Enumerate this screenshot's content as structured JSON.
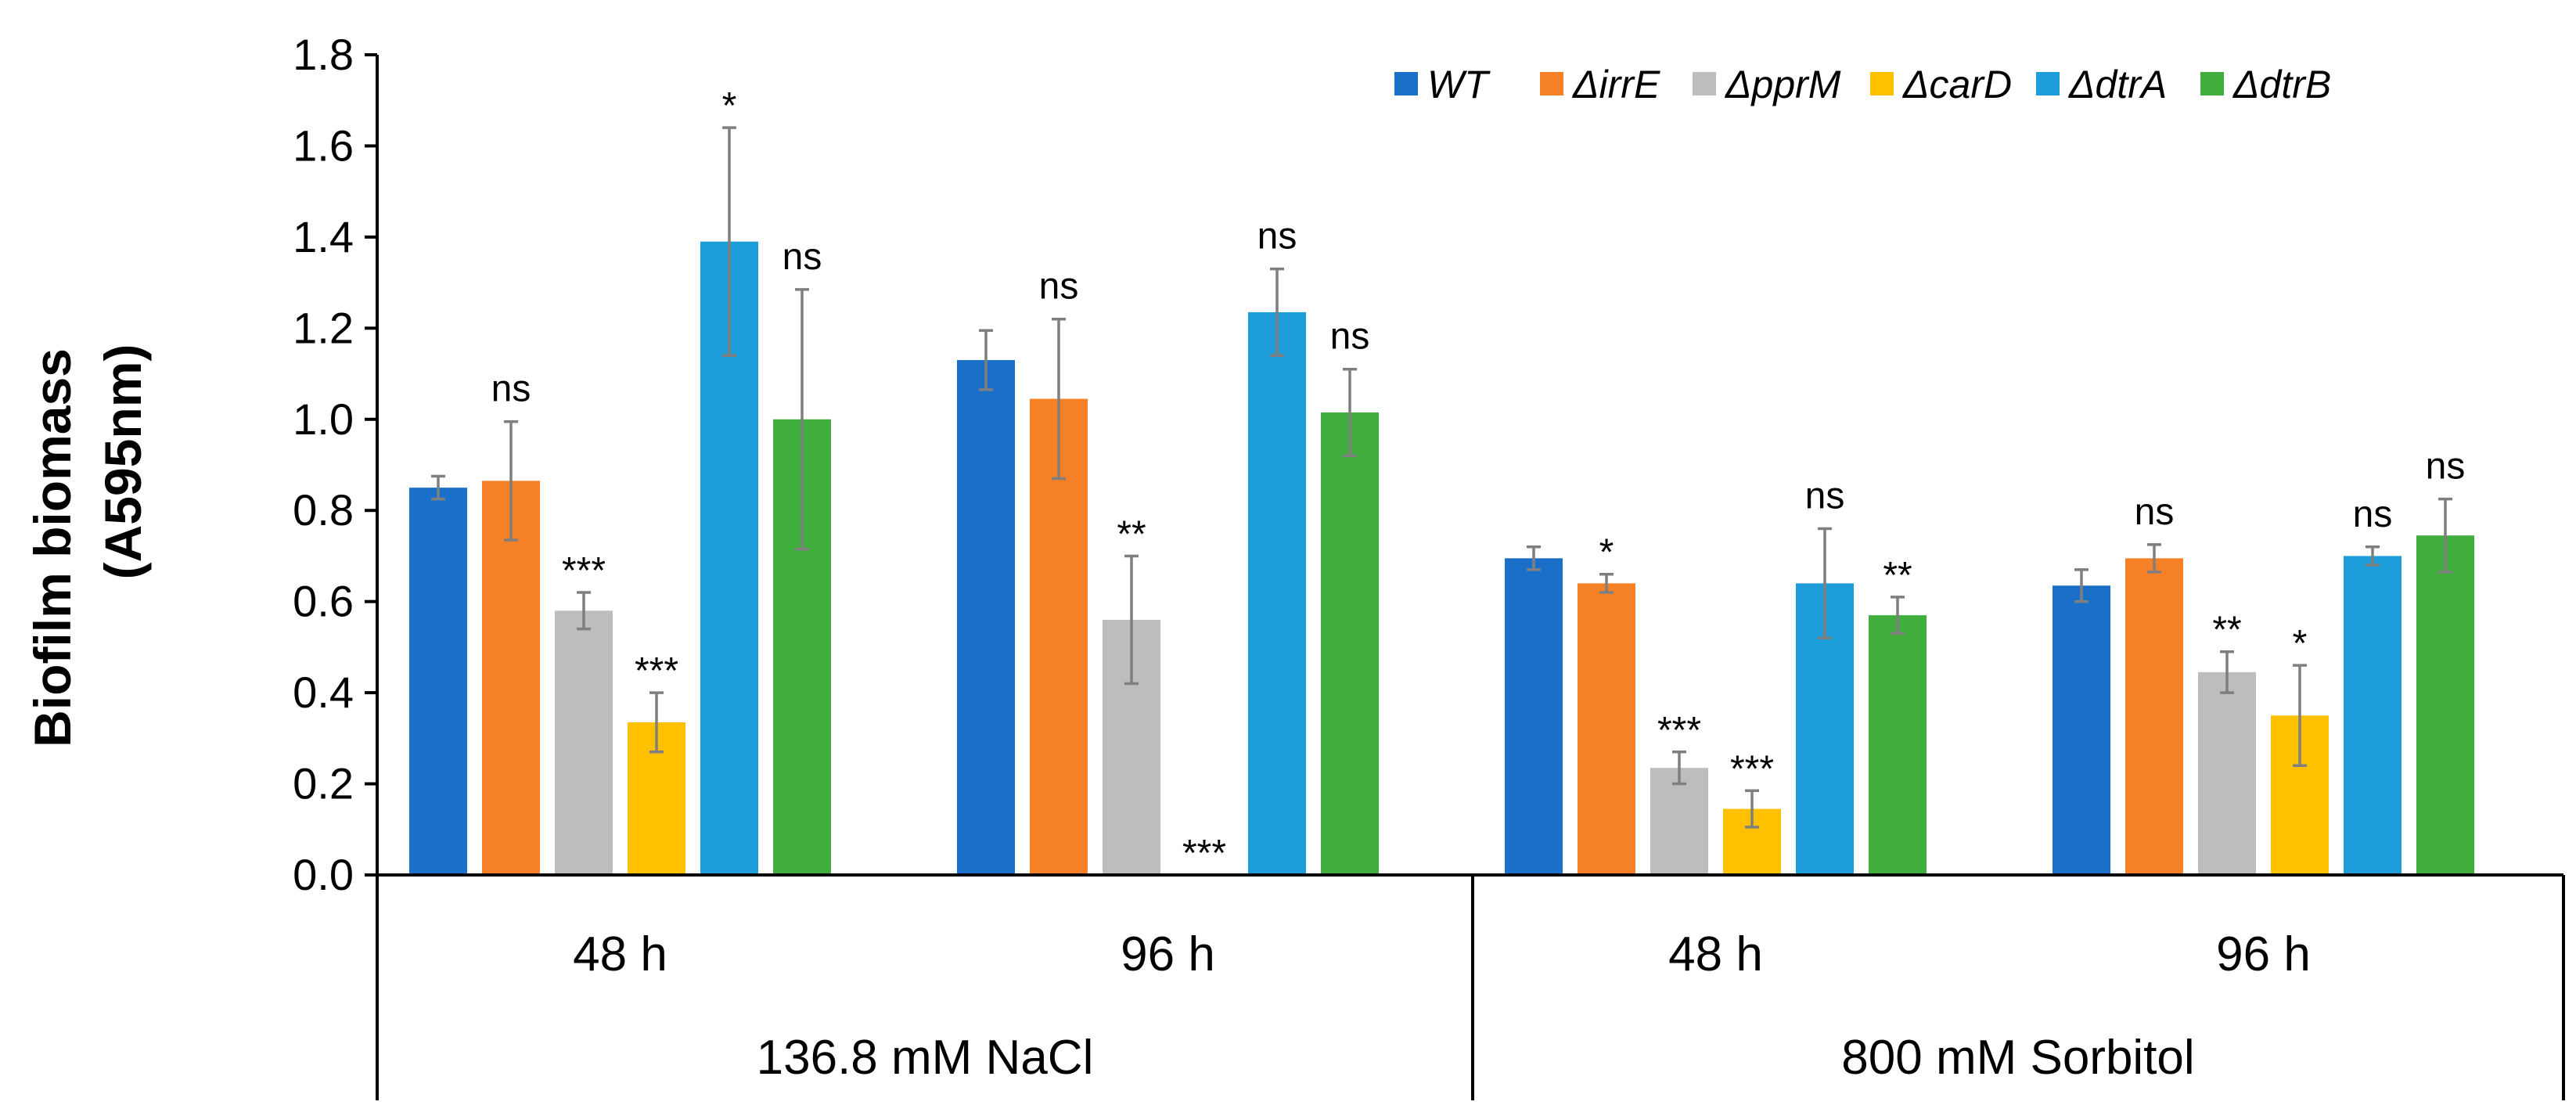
{
  "chart_data": {
    "type": "bar",
    "title": "",
    "ylabel_lines": [
      "Biofilm  biomass",
      "(A595nm)"
    ],
    "xlabel": "",
    "ylim": [
      0,
      1.8
    ],
    "yticks": [
      "0.0",
      "0.2",
      "0.4",
      "0.6",
      "0.8",
      "1.0",
      "1.2",
      "1.4",
      "1.6",
      "1.8"
    ],
    "legend_position": "top-right",
    "conditions": [
      "136.8 mM NaCl",
      "800 mM Sorbitol"
    ],
    "time_labels": [
      "48 h",
      "96 h",
      "48 h",
      "96 h"
    ],
    "categories": [
      "136.8 mM NaCl 48 h",
      "136.8 mM NaCl 96 h",
      "800 mM Sorbitol 48 h",
      "800 mM Sorbitol 96 h"
    ],
    "series": [
      {
        "name": "WT",
        "color": "#1A70C8",
        "values": [
          0.85,
          1.13,
          0.695,
          0.635
        ],
        "errors": [
          0.025,
          0.065,
          0.025,
          0.035
        ],
        "significance": [
          "",
          "",
          "",
          ""
        ]
      },
      {
        "name": "ΔirrE",
        "color": "#F58025",
        "values": [
          0.865,
          1.045,
          0.64,
          0.695
        ],
        "errors": [
          0.13,
          0.175,
          0.02,
          0.03
        ],
        "significance": [
          "ns",
          "ns",
          "*",
          "ns"
        ]
      },
      {
        "name": "ΔpprM",
        "color": "#BDBDBD",
        "values": [
          0.58,
          0.56,
          0.235,
          0.445
        ],
        "errors": [
          0.04,
          0.14,
          0.035,
          0.045
        ],
        "significance": [
          "***",
          "**",
          "***",
          "**"
        ]
      },
      {
        "name": "ΔcarD",
        "color": "#FFC000",
        "values": [
          0.335,
          0.0,
          0.145,
          0.35
        ],
        "errors": [
          0.065,
          0.0,
          0.04,
          0.11
        ],
        "significance": [
          "***",
          "***",
          "***",
          "*"
        ]
      },
      {
        "name": "ΔdtrA",
        "color": "#1E9DDB",
        "values": [
          1.39,
          1.235,
          0.64,
          0.7
        ],
        "errors": [
          0.25,
          0.095,
          0.12,
          0.02
        ],
        "significance": [
          "*",
          "ns",
          "ns",
          "ns"
        ]
      },
      {
        "name": "ΔdtrB",
        "color": "#3FAE3C",
        "values": [
          1.0,
          1.015,
          0.57,
          0.745
        ],
        "errors": [
          0.285,
          0.095,
          0.04,
          0.08
        ],
        "significance": [
          "ns",
          "ns",
          "**",
          "ns"
        ]
      }
    ]
  }
}
